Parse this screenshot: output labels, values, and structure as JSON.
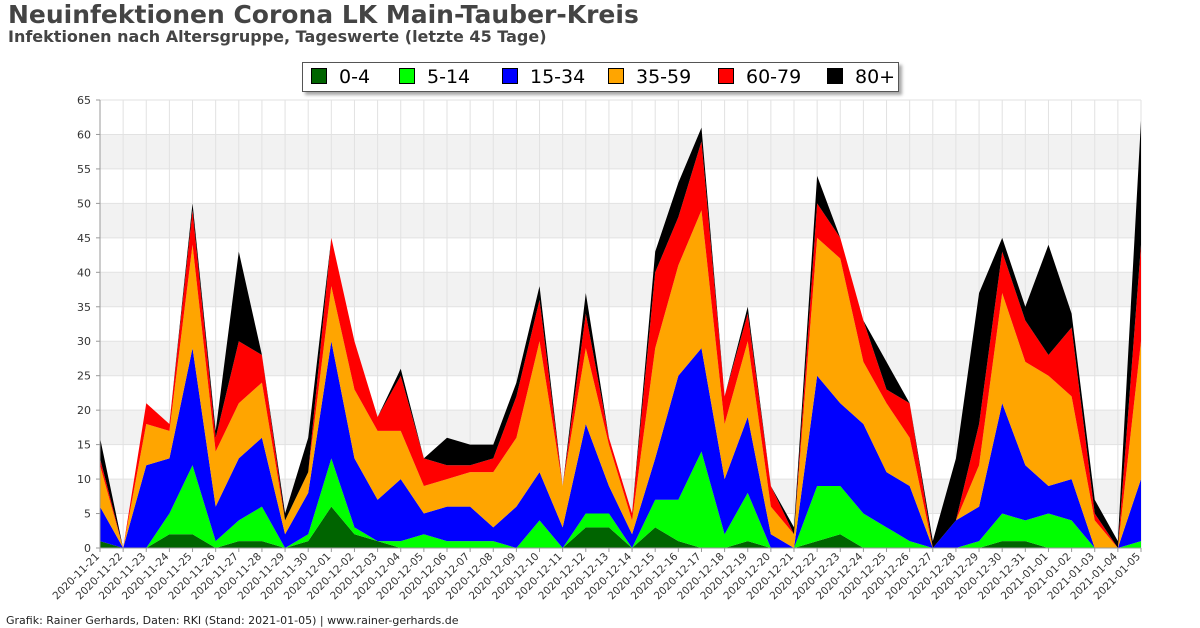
{
  "header": {
    "title": "Neuinfektionen Corona LK Main-Tauber-Kreis",
    "subtitle": "Infektionen nach Altersgruppe, Tageswerte (letzte 45 Tage)"
  },
  "footer": {
    "credit": "Grafik: Rainer Gerhards, Daten: RKI (Stand: 2021-01-05) | www.rainer-gerhards.de"
  },
  "chart_data": {
    "type": "area",
    "stacked": true,
    "title": "Neuinfektionen Corona LK Main-Tauber-Kreis",
    "subtitle": "Infektionen nach Altersgruppe, Tageswerte (letzte 45 Tage)",
    "xlabel": "",
    "ylabel": "",
    "ylim": [
      0,
      65
    ],
    "yticks": [
      0,
      5,
      10,
      15,
      20,
      25,
      30,
      35,
      40,
      45,
      50,
      55,
      60,
      65
    ],
    "grid": true,
    "legend_position": "top-center",
    "categories": [
      "2020-11-21",
      "2020-11-22",
      "2020-11-23",
      "2020-11-24",
      "2020-11-25",
      "2020-11-26",
      "2020-11-27",
      "2020-11-28",
      "2020-11-29",
      "2020-11-30",
      "2020-12-01",
      "2020-12-02",
      "2020-12-03",
      "2020-12-04",
      "2020-12-05",
      "2020-12-06",
      "2020-12-07",
      "2020-12-08",
      "2020-12-09",
      "2020-12-10",
      "2020-12-11",
      "2020-12-12",
      "2020-12-13",
      "2020-12-14",
      "2020-12-15",
      "2020-12-16",
      "2020-12-17",
      "2020-12-18",
      "2020-12-19",
      "2020-12-20",
      "2020-12-21",
      "2020-12-22",
      "2020-12-23",
      "2020-12-24",
      "2020-12-25",
      "2020-12-26",
      "2020-12-27",
      "2020-12-28",
      "2020-12-29",
      "2020-12-30",
      "2020-12-31",
      "2021-01-01",
      "2021-01-02",
      "2021-01-03",
      "2021-01-04",
      "2021-01-05"
    ],
    "series": [
      {
        "name": "0-4",
        "color": "#006400",
        "values": [
          1,
          0,
          0,
          2,
          2,
          0,
          1,
          1,
          0,
          1,
          6,
          2,
          1,
          0,
          0,
          0,
          0,
          0,
          0,
          0,
          0,
          3,
          3,
          0,
          3,
          1,
          0,
          0,
          1,
          0,
          0,
          1,
          2,
          0,
          0,
          0,
          0,
          0,
          0,
          1,
          1,
          0,
          0,
          0,
          0,
          0
        ]
      },
      {
        "name": "5-14",
        "color": "#00ff00",
        "values": [
          0,
          0,
          0,
          3,
          10,
          1,
          3,
          5,
          0,
          1,
          7,
          1,
          0,
          1,
          2,
          1,
          1,
          1,
          0,
          4,
          0,
          2,
          2,
          0,
          4,
          6,
          14,
          2,
          7,
          0,
          0,
          8,
          7,
          5,
          3,
          1,
          0,
          0,
          1,
          4,
          3,
          5,
          4,
          0,
          0,
          1
        ]
      },
      {
        "name": "15-34",
        "color": "#0000ff",
        "values": [
          5,
          0,
          12,
          8,
          17,
          5,
          9,
          10,
          2,
          6,
          17,
          10,
          6,
          9,
          3,
          5,
          5,
          2,
          6,
          7,
          3,
          13,
          4,
          2,
          6,
          18,
          15,
          8,
          11,
          2,
          0,
          16,
          12,
          13,
          8,
          8,
          0,
          4,
          5,
          16,
          8,
          4,
          6,
          0,
          0,
          9
        ]
      },
      {
        "name": "35-59",
        "color": "#ffa500",
        "values": [
          6,
          0,
          6,
          4,
          15,
          8,
          8,
          8,
          2,
          3,
          8,
          10,
          10,
          7,
          4,
          4,
          5,
          8,
          10,
          19,
          6,
          11,
          6,
          2,
          16,
          16,
          20,
          8,
          11,
          4,
          2,
          20,
          21,
          9,
          10,
          7,
          0,
          0,
          6,
          16,
          15,
          16,
          12,
          4,
          0,
          20
        ]
      },
      {
        "name": "60-79",
        "color": "#ff0000",
        "values": [
          1,
          0,
          3,
          1,
          5,
          2,
          9,
          4,
          0,
          0,
          7,
          7,
          2,
          8,
          4,
          2,
          1,
          2,
          6,
          6,
          0,
          5,
          1,
          1,
          11,
          7,
          10,
          4,
          4,
          3,
          0,
          5,
          3,
          6,
          2,
          5,
          0,
          0,
          6,
          6,
          6,
          3,
          10,
          1,
          0,
          14
        ]
      },
      {
        "name": "80+",
        "color": "#000000",
        "values": [
          3,
          0,
          0,
          0,
          1,
          1,
          13,
          0,
          1,
          5,
          0,
          0,
          0,
          1,
          0,
          4,
          3,
          2,
          2,
          2,
          0,
          3,
          0,
          0,
          3,
          5,
          2,
          0,
          1,
          0,
          1,
          4,
          0,
          0,
          4,
          0,
          1,
          9,
          19,
          2,
          2,
          16,
          2,
          2,
          1,
          18
        ]
      }
    ]
  }
}
